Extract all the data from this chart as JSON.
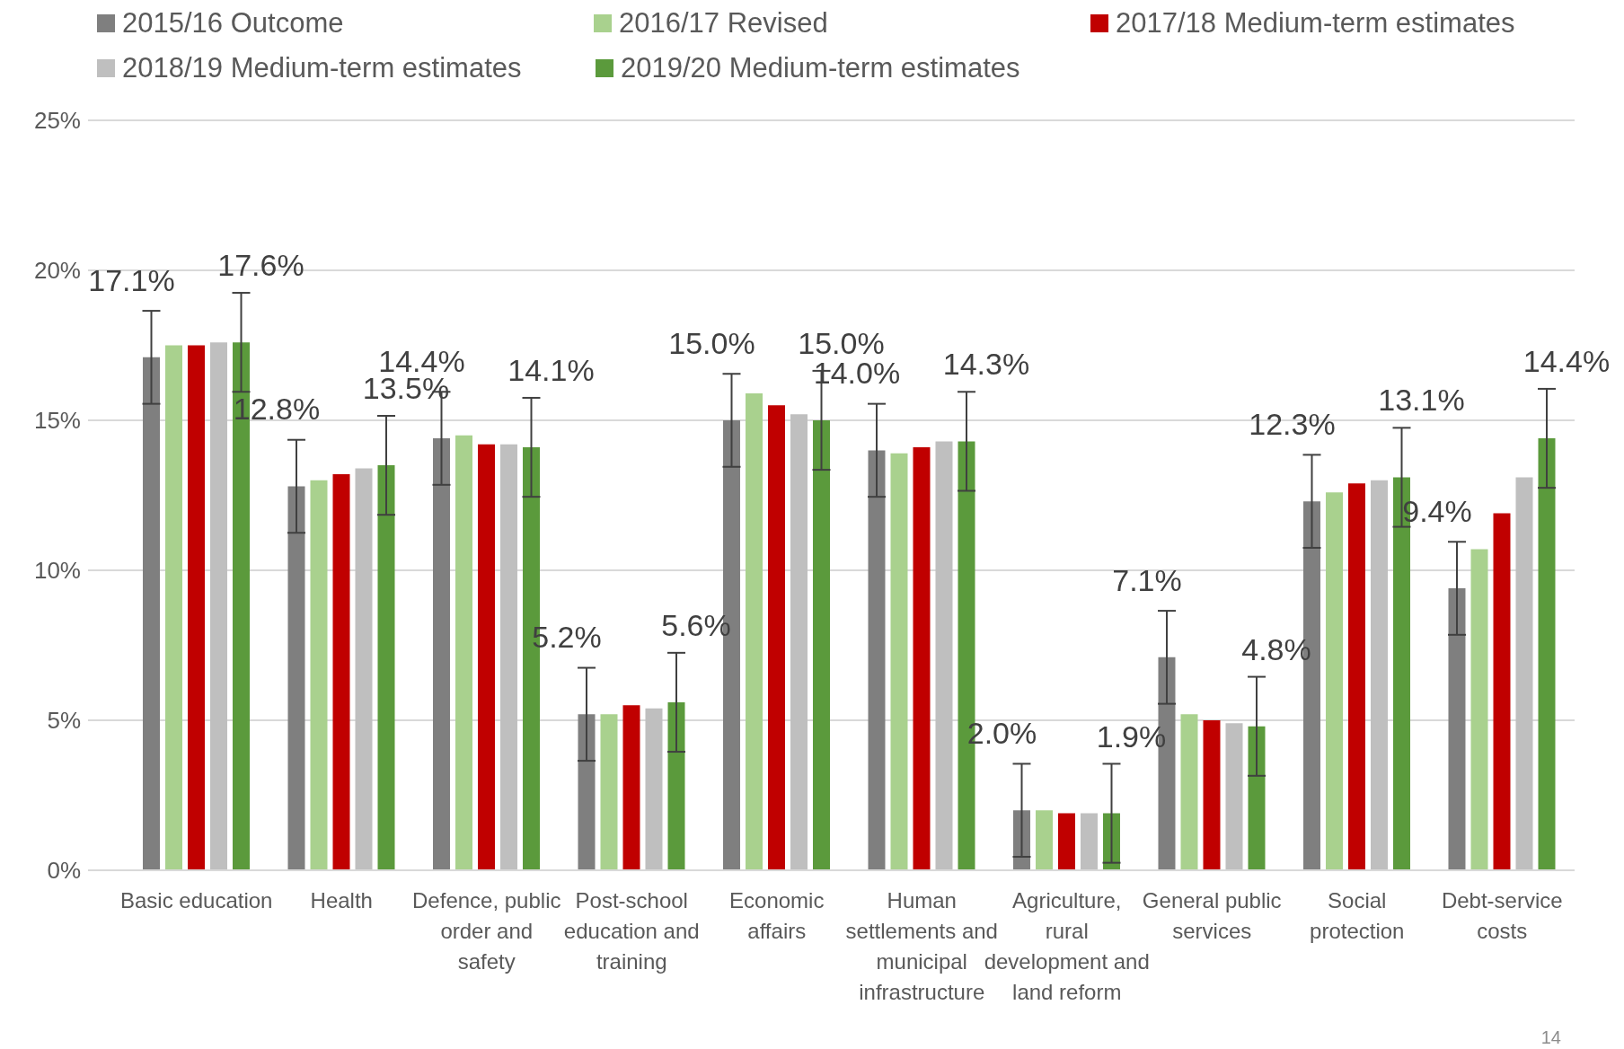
{
  "chart_data": {
    "type": "bar",
    "legend": "top",
    "grid": "y",
    "categories": [
      "Basic education",
      "Health",
      "Defence, public order and safety",
      "Post-school education and training",
      "Economic affairs",
      "Human settlements and municipal infrastructure",
      "Agriculture, rural development and land reform",
      "General public services",
      "Social protection",
      "Debt-service costs"
    ],
    "ylim": [
      0,
      25
    ],
    "yticks": [
      {
        "value": 0,
        "label": "0%"
      },
      {
        "value": 5,
        "label": "5%"
      },
      {
        "value": 10,
        "label": "10%"
      },
      {
        "value": 15,
        "label": "15%"
      },
      {
        "value": 20,
        "label": "20%"
      },
      {
        "value": 25,
        "label": "25%"
      }
    ],
    "series": [
      {
        "name": "2015/16 Outcome",
        "color": "#7f7f7f",
        "values": [
          17.1,
          12.8,
          14.4,
          5.2,
          15.0,
          14.0,
          2.0,
          7.1,
          12.3,
          9.4
        ],
        "errors": [
          1.55,
          1.55,
          1.55,
          1.55,
          1.55,
          1.55,
          1.55,
          1.55,
          1.55,
          1.55
        ],
        "value_labels": [
          "17.1%",
          "12.8%",
          "14.4%",
          "5.2%",
          "15.0%",
          "14.0%",
          "2.0%",
          "7.1%",
          "12.3%",
          "9.4%"
        ]
      },
      {
        "name": "2016/17 Revised",
        "color": "#a9d18e",
        "values": [
          17.5,
          13.0,
          14.5,
          5.2,
          15.9,
          13.9,
          2.0,
          5.2,
          12.6,
          10.7
        ]
      },
      {
        "name": "2017/18 Medium-term estimates",
        "color": "#c00000",
        "values": [
          17.5,
          13.2,
          14.2,
          5.5,
          15.5,
          14.1,
          1.9,
          5.0,
          12.9,
          11.9
        ]
      },
      {
        "name": "2018/19 Medium-term estimates",
        "color": "#bfbfbf",
        "values": [
          17.6,
          13.4,
          14.2,
          5.4,
          15.2,
          14.3,
          1.9,
          4.9,
          13.0,
          13.1
        ]
      },
      {
        "name": "2019/20 Medium-term estimates",
        "color": "#5b9a3c",
        "values": [
          17.6,
          13.5,
          14.1,
          5.6,
          15.0,
          14.3,
          1.9,
          4.8,
          13.1,
          14.4
        ],
        "errors": [
          1.65,
          1.65,
          1.65,
          1.65,
          1.65,
          1.65,
          1.65,
          1.65,
          1.65,
          1.65
        ],
        "value_labels": [
          "17.6%",
          "13.5%",
          "14.1%",
          "5.6%",
          "15.0%",
          "14.3%",
          "1.9%",
          "4.8%",
          "13.1%",
          "14.4%"
        ]
      }
    ],
    "annotations": [
      "14"
    ]
  }
}
